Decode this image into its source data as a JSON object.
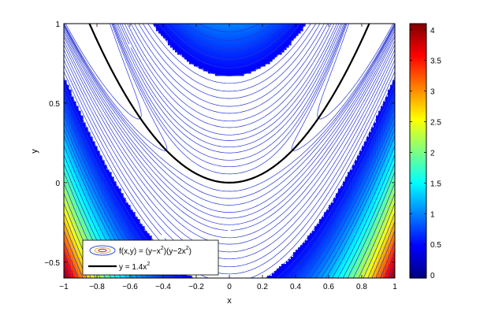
{
  "chart_data": {
    "type": "contour",
    "function": {
      "expression": "(y-x^2)(y-2x^2)",
      "legend_label_parts": [
        "f(x,y) = (y−x",
        "2",
        ")(y−2x",
        "2",
        ")"
      ]
    },
    "curve": {
      "a": 1.4,
      "legend_label_parts": [
        "y = 1.4x",
        "2"
      ]
    },
    "xlabel": "x",
    "ylabel": "y",
    "xlim": [
      -1,
      1
    ],
    "ylim": [
      -0.6,
      1
    ],
    "x_ticks": [
      -1,
      -0.8,
      -0.6,
      -0.4,
      -0.2,
      0,
      0.2,
      0.4,
      0.6,
      0.8,
      1
    ],
    "x_tick_labels": [
      "−1",
      "−0.8",
      "−0.6",
      "−0.4",
      "−0.2",
      "0",
      "0.2",
      "0.4",
      "0.6",
      "0.8",
      "1"
    ],
    "y_ticks": [
      -0.5,
      0,
      0.5,
      1
    ],
    "y_tick_labels": [
      "−0.5",
      "0",
      "0.5",
      "1"
    ],
    "colorbar": {
      "range": [
        -0.05,
        4.1
      ],
      "ticks": [
        0,
        0.5,
        1,
        1.5,
        2,
        2.5,
        3,
        3.5,
        4
      ],
      "tick_labels": [
        "0",
        "0.5",
        "1",
        "1.5",
        "2",
        "2.5",
        "3",
        "3.5",
        "4"
      ]
    },
    "levels": [
      -0.02,
      -0.005,
      0.003,
      0.01,
      0.02,
      0.035,
      0.05,
      0.07,
      0.09,
      0.12,
      0.15,
      0.19,
      0.23,
      0.28,
      0.33,
      0.39,
      0.45,
      0.52,
      0.6,
      0.7,
      0.8,
      0.9,
      1.0,
      1.1,
      1.2,
      1.35,
      1.5,
      1.65,
      1.8,
      2.0,
      2.2,
      2.4,
      2.6,
      2.8,
      3.0,
      3.25,
      3.5,
      3.75,
      4.0
    ],
    "legend_placement": "lower-left",
    "grid": false
  }
}
